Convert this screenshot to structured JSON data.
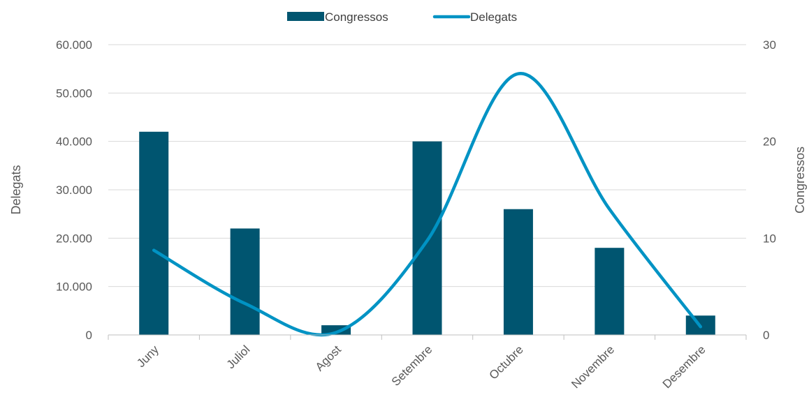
{
  "chart_data": {
    "type": "bar",
    "categories": [
      "Juny",
      "Juliol",
      "Agost",
      "Setembre",
      "Octubre",
      "Novembre",
      "Desembre"
    ],
    "series": [
      {
        "name": "Congressos",
        "type": "bar",
        "axis": "right",
        "values": [
          21,
          11,
          1,
          20,
          13,
          9,
          2
        ]
      },
      {
        "name": "Delegats",
        "type": "line",
        "smooth": true,
        "axis": "left",
        "values": [
          17500,
          6500,
          500,
          19500,
          54000,
          26000,
          1700
        ]
      }
    ],
    "y_left": {
      "label": "Delegats",
      "ylim": [
        0,
        60000
      ],
      "ticks": [
        "0",
        "10.000",
        "20.000",
        "30.000",
        "40.000",
        "50.000",
        "60.000"
      ]
    },
    "y_right": {
      "label": "Congressos",
      "ylim": [
        0,
        30
      ],
      "ticks": [
        "0",
        "10",
        "20",
        "30"
      ]
    },
    "legend": {
      "position": "top"
    },
    "grid": true,
    "colors": {
      "bar": "#005570",
      "line": "#0093C4",
      "grid": "#d9d9d9",
      "axis": "#bfbfbf"
    }
  }
}
